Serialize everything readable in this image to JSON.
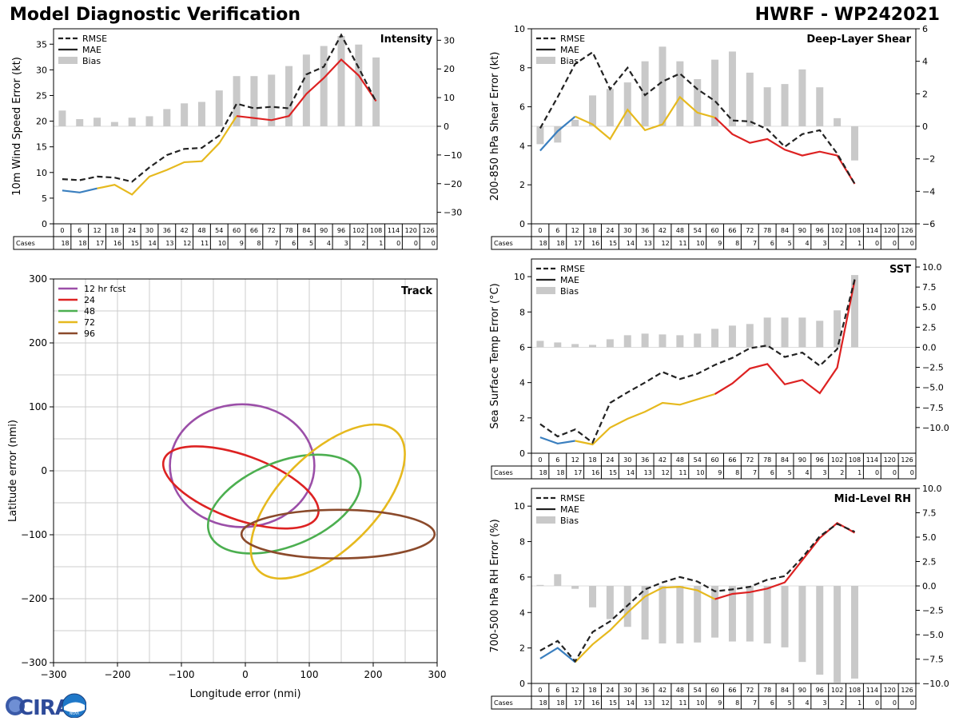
{
  "header": {
    "title": "Model Diagnostic Verification",
    "run_label": "HWRF - WP242021"
  },
  "logo": {
    "text": "CIRA",
    "sublabel": "NOAA"
  },
  "colors": {
    "blue": "#3a7fbf",
    "yellow": "#e6b91e",
    "red": "#dd2222",
    "rmse": "#222222",
    "bias": "#c9c9c9",
    "purple": "#9b4fa8",
    "green": "#4caf50",
    "brown": "#8b4a2b",
    "grid": "#cccccc"
  },
  "common": {
    "hours": [
      "0",
      "6",
      "12",
      "18",
      "24",
      "30",
      "36",
      "42",
      "48",
      "54",
      "60",
      "66",
      "72",
      "78",
      "84",
      "90",
      "96",
      "102",
      "108",
      "114",
      "120",
      "126"
    ],
    "cases": [
      "18",
      "18",
      "17",
      "16",
      "15",
      "14",
      "13",
      "12",
      "11",
      "10",
      "9",
      "8",
      "7",
      "6",
      "5",
      "4",
      "3",
      "2",
      "1",
      "0",
      "0",
      "0"
    ],
    "cases_label": "Cases",
    "legend": {
      "rmse": "RMSE",
      "mae": "MAE",
      "bias": "Bias"
    }
  },
  "chart_data": [
    {
      "id": "intensity",
      "type": "line+bar",
      "title": "Intensity",
      "ylabel": "10m Wind Speed Error (kt)",
      "ylim": [
        0,
        38
      ],
      "yticks": [
        0,
        5,
        10,
        15,
        20,
        25,
        30,
        35
      ],
      "y2lim": [
        -34,
        34
      ],
      "y2ticks": [
        -30,
        -20,
        -10,
        0,
        10,
        20,
        30
      ],
      "rmse": [
        8.7,
        8.5,
        9.2,
        9.0,
        8.2,
        11.0,
        13.4,
        14.6,
        14.8,
        17.2,
        23.4,
        22.5,
        22.8,
        22.5,
        29.1,
        30.6,
        36.8,
        30.4,
        23.8
      ],
      "mae": [
        6.5,
        6.1,
        6.9,
        7.6,
        5.7,
        9.2,
        10.5,
        12.0,
        12.2,
        15.7,
        21.0,
        20.6,
        20.2,
        21.0,
        25.3,
        28.4,
        32.0,
        28.9,
        23.9
      ],
      "bias": [
        5.5,
        2.5,
        3,
        1.5,
        3,
        3.5,
        6,
        8,
        8.5,
        12.5,
        17.5,
        17.5,
        18,
        21,
        25,
        28,
        31.5,
        28.5,
        24
      ],
      "tick_format": "int"
    },
    {
      "id": "shear",
      "type": "line+bar",
      "title": "Deep-Layer Shear",
      "ylabel": "200-850 hPa Shear Error (kt)",
      "ylim": [
        0,
        10
      ],
      "yticks": [
        0,
        2,
        4,
        6,
        8,
        10
      ],
      "y2lim": [
        -6,
        6
      ],
      "y2ticks": [
        -6,
        -4,
        -2,
        0,
        2,
        4,
        6
      ],
      "rmse": [
        4.9,
        6.5,
        8.2,
        8.8,
        6.9,
        8.0,
        6.6,
        7.3,
        7.7,
        6.9,
        6.3,
        5.3,
        5.25,
        4.85,
        3.95,
        4.6,
        4.8,
        3.6,
        2.05
      ],
      "mae": [
        3.75,
        4.75,
        5.5,
        5.1,
        4.35,
        5.85,
        4.8,
        5.1,
        6.5,
        5.7,
        5.45,
        4.6,
        4.15,
        4.35,
        3.8,
        3.5,
        3.7,
        3.5,
        2.05
      ],
      "bias": [
        -1.1,
        -1.0,
        0.4,
        1.9,
        2.3,
        2.7,
        4.0,
        4.9,
        4.0,
        2.9,
        4.1,
        4.6,
        3.3,
        2.4,
        2.6,
        3.5,
        2.4,
        0.5,
        -2.1
      ],
      "tick_format": "int"
    },
    {
      "id": "sst",
      "type": "line+bar",
      "title": "SST",
      "ylabel": "Sea Surface Temp Error (°C)",
      "ylim": [
        0,
        11
      ],
      "yticks": [
        0,
        2,
        4,
        6,
        8,
        10
      ],
      "y2lim": [
        -13.2,
        11.0
      ],
      "y2ticks": [
        -10.0,
        -7.5,
        -5.0,
        -2.5,
        0.0,
        2.5,
        5.0,
        7.5,
        10.0
      ],
      "rmse": [
        1.65,
        0.95,
        1.35,
        0.6,
        2.85,
        3.45,
        4.0,
        4.6,
        4.2,
        4.5,
        5.0,
        5.4,
        5.95,
        6.1,
        5.45,
        5.7,
        4.95,
        5.9,
        9.85
      ],
      "mae": [
        0.9,
        0.55,
        0.7,
        0.5,
        1.45,
        1.95,
        2.35,
        2.85,
        2.75,
        3.05,
        3.35,
        3.95,
        4.8,
        5.05,
        3.9,
        4.15,
        3.4,
        4.85,
        9.8
      ],
      "bias": [
        0.8,
        0.6,
        0.4,
        0.3,
        1.0,
        1.5,
        1.7,
        1.6,
        1.5,
        1.7,
        2.3,
        2.7,
        2.9,
        3.7,
        3.7,
        3.7,
        3.3,
        4.6,
        9.0
      ],
      "tick_format": "dec1"
    },
    {
      "id": "rh",
      "type": "line+bar",
      "title": "Mid-Level RH",
      "ylabel": "700-500 hPa RH Error (%)",
      "ylim": [
        0,
        11
      ],
      "yticks": [
        0,
        2,
        4,
        6,
        8,
        10
      ],
      "y2lim": [
        -10.0,
        10.0
      ],
      "y2ticks": [
        -10.0,
        -7.5,
        -5.0,
        -2.5,
        0.0,
        2.5,
        5.0,
        7.5,
        10.0
      ],
      "rmse": [
        1.85,
        2.4,
        1.25,
        2.9,
        3.5,
        4.4,
        5.3,
        5.7,
        6.0,
        5.75,
        5.2,
        5.3,
        5.45,
        5.85,
        6.05,
        7.1,
        8.3,
        9.0,
        8.55
      ],
      "mae": [
        1.4,
        2.0,
        1.2,
        2.2,
        3.0,
        4.0,
        4.9,
        5.4,
        5.45,
        5.25,
        4.75,
        5.05,
        5.15,
        5.35,
        5.7,
        6.95,
        8.2,
        9.05,
        8.5
      ],
      "bias": [
        0.1,
        1.2,
        -0.3,
        -2.2,
        -3.4,
        -4.2,
        -5.5,
        -5.9,
        -5.9,
        -5.8,
        -5.3,
        -5.7,
        -5.7,
        -5.9,
        -6.3,
        -7.8,
        -9.1,
        -9.9,
        -9.5
      ],
      "tick_format": "dec1"
    },
    {
      "id": "track",
      "type": "ellipse",
      "title": "Track",
      "xlabel": "Longitude error (nmi)",
      "ylabel": "Latitude error (nmi)",
      "xlim": [
        -300,
        300
      ],
      "ylim": [
        -300,
        300
      ],
      "xticks": [
        -300,
        -200,
        -100,
        0,
        100,
        200,
        300
      ],
      "yticks": [
        -300,
        -200,
        -100,
        0,
        100,
        200,
        300
      ],
      "legend": [
        "12 hr fcst",
        "24",
        "48",
        "72",
        "96"
      ],
      "ellipses": [
        {
          "label": "12 hr fcst",
          "cx": -5,
          "cy": 8,
          "rx": 113,
          "ry": 96,
          "angle": 0
        },
        {
          "label": "24",
          "cx": -7,
          "cy": -26,
          "rx": 128,
          "ry": 50,
          "angle": -20
        },
        {
          "label": "48",
          "cx": 61,
          "cy": -52,
          "rx": 126,
          "ry": 66,
          "angle": 22
        },
        {
          "label": "72",
          "cx": 129,
          "cy": -48,
          "rx": 153,
          "ry": 75,
          "angle": 45
        },
        {
          "label": "96",
          "cx": 145,
          "cy": -99,
          "rx": 151,
          "ry": 38,
          "angle": 0
        }
      ]
    }
  ]
}
